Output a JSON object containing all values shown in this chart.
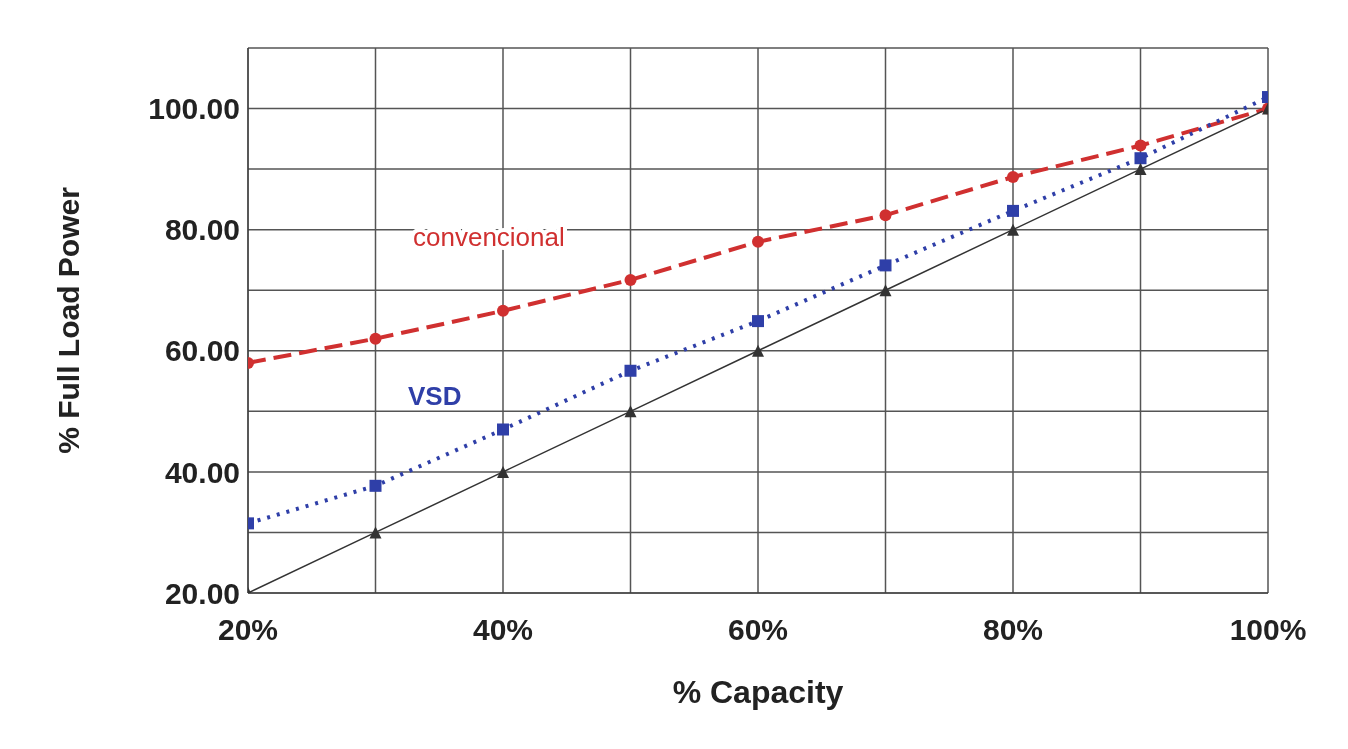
{
  "chart_data": {
    "type": "line",
    "xlabel": "% Capacity",
    "ylabel": "% Full Load Power",
    "x": [
      20,
      30,
      40,
      50,
      60,
      70,
      80,
      90,
      100
    ],
    "series": [
      {
        "name": "convencional",
        "color": "#d03030",
        "line_style": "dashed",
        "marker": "circle",
        "values": [
          58,
          62,
          66.6,
          71.7,
          78,
          82.4,
          88.7,
          93.9,
          100
        ]
      },
      {
        "name": "VSD",
        "color": "#2f3fa8",
        "line_style": "dotted",
        "marker": "square",
        "values": [
          31.5,
          37.7,
          47,
          56.7,
          64.9,
          74.1,
          83.1,
          91.8,
          101.9
        ]
      },
      {
        "color": "#333333",
        "line_style": "solid",
        "marker": "triangle",
        "values": [
          20,
          30,
          40,
          50,
          60,
          70,
          80,
          90,
          100
        ]
      }
    ],
    "xlim": [
      20,
      100
    ],
    "xticks": [
      {
        "value": 20,
        "label": "20%"
      },
      {
        "value": 30,
        "label": null
      },
      {
        "value": 40,
        "label": "40%"
      },
      {
        "value": 50,
        "label": null
      },
      {
        "value": 60,
        "label": "60%"
      },
      {
        "value": 70,
        "label": null
      },
      {
        "value": 80,
        "label": "80%"
      },
      {
        "value": 90,
        "label": null
      },
      {
        "value": 100,
        "label": "100%"
      }
    ],
    "ylim": [
      20,
      110
    ],
    "yticks": [
      {
        "value": 20,
        "label": "20.00"
      },
      {
        "value": 30,
        "label": null
      },
      {
        "value": 40,
        "label": "40.00"
      },
      {
        "value": 50,
        "label": null
      },
      {
        "value": 60,
        "label": "60.00"
      },
      {
        "value": 70,
        "label": null
      },
      {
        "value": 80,
        "label": "80.00"
      },
      {
        "value": 90,
        "label": null
      },
      {
        "value": 100,
        "label": "100.00"
      },
      {
        "value": 110,
        "label": null
      }
    ],
    "grid": true
  }
}
